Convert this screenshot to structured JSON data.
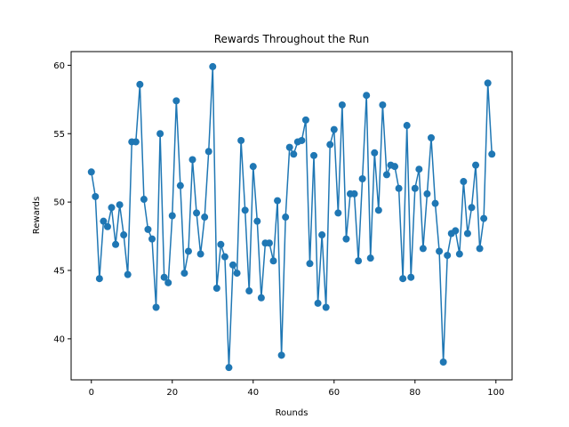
{
  "chart_data": {
    "type": "line",
    "title": "Rewards Throughout the Run",
    "xlabel": "Rounds",
    "ylabel": "Rewards",
    "xlim": [
      -5,
      104
    ],
    "ylim": [
      37,
      61
    ],
    "xticks": [
      0,
      20,
      40,
      60,
      80,
      100
    ],
    "yticks": [
      40,
      45,
      50,
      55,
      60
    ],
    "grid": false,
    "legend": "none",
    "line_color": "#1f77b4",
    "marker": "circle",
    "series": [
      {
        "x": [
          0,
          1,
          2,
          3,
          4,
          5,
          6,
          7,
          8,
          9,
          10,
          11,
          12,
          13,
          14,
          15,
          16,
          17,
          18,
          19,
          20,
          21,
          22,
          23,
          24,
          25,
          26,
          27,
          28,
          29,
          30,
          31,
          32,
          33,
          34,
          35,
          36,
          37,
          38,
          39,
          40,
          41,
          42,
          43,
          44,
          45,
          46,
          47,
          48,
          49,
          50,
          51,
          52,
          53,
          54,
          55,
          56,
          57,
          58,
          59,
          60,
          61,
          62,
          63,
          64,
          65,
          66,
          67,
          68,
          69,
          70,
          71,
          72,
          73,
          74,
          75,
          76,
          77,
          78,
          79,
          80,
          81,
          82,
          83,
          84,
          85,
          86,
          87,
          88,
          89,
          90,
          91,
          92,
          93,
          94,
          95,
          96,
          97,
          98,
          99
        ],
        "values": [
          52.2,
          50.4,
          44.4,
          48.6,
          48.2,
          49.6,
          46.9,
          49.8,
          47.6,
          44.7,
          54.4,
          54.4,
          58.6,
          50.2,
          48.0,
          47.3,
          42.3,
          55.0,
          44.5,
          44.1,
          49.0,
          57.4,
          51.2,
          44.8,
          46.4,
          53.1,
          49.2,
          46.2,
          48.9,
          53.7,
          59.9,
          43.7,
          46.9,
          46.0,
          37.9,
          45.4,
          44.8,
          54.5,
          49.4,
          43.5,
          52.6,
          48.6,
          43.0,
          47.0,
          47.0,
          45.7,
          50.1,
          38.8,
          48.9,
          54.0,
          53.5,
          54.4,
          54.5,
          56.0,
          45.5,
          53.4,
          42.6,
          47.6,
          42.3,
          54.2,
          55.3,
          49.2,
          57.1,
          47.3,
          50.6,
          50.6,
          45.7,
          51.7,
          57.8,
          45.9,
          53.6,
          49.4,
          57.1,
          52.0,
          52.7,
          52.6,
          51.0,
          44.4,
          55.6,
          44.5,
          51.0,
          52.4,
          46.6,
          50.6,
          54.7,
          49.9,
          46.4,
          38.3,
          46.1,
          47.7,
          47.9,
          46.2,
          51.5,
          47.7,
          49.6,
          52.7,
          46.6,
          48.8,
          58.7,
          53.5
        ]
      }
    ]
  }
}
